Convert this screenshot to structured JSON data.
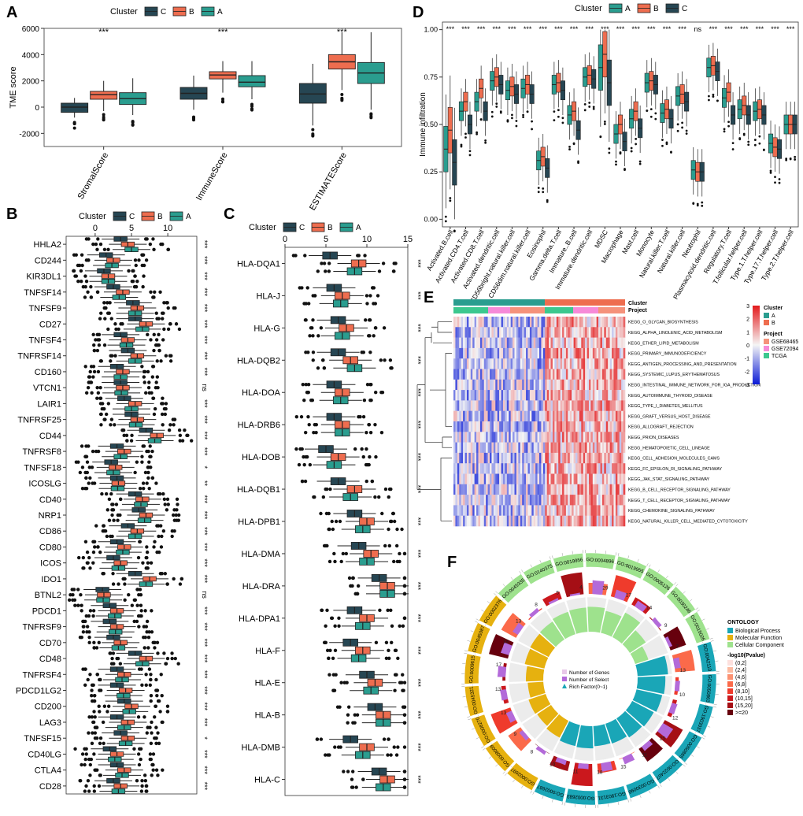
{
  "colors": {
    "A": "#2a9d8f",
    "B": "#ee6d4f",
    "C": "#264653",
    "axis": "#333333",
    "panelBg": "#ffffff",
    "heatHigh": "#e31a1c",
    "heatLow": "#0a1ad6",
    "heatMid": "#f5f5f5",
    "gse68465": "#f5927b",
    "gse72094": "#f68ad8",
    "tcga": "#3cc88f",
    "bp": "#1aa6b7",
    "mf": "#e6b10f",
    "cc": "#9ee28d"
  },
  "panels": {
    "A": "A",
    "B": "B",
    "C": "C",
    "D": "D",
    "E": "E",
    "F": "F"
  },
  "legend": {
    "title": "Cluster",
    "C": "C",
    "B": "B",
    "A": "A"
  },
  "chart_data": [
    {
      "id": "A",
      "type": "box",
      "ylabel": "TME score",
      "ylim": [
        -3000,
        6000
      ],
      "yticks": [
        -2000,
        0,
        2000,
        4000,
        6000
      ],
      "categories": [
        "StromalScore",
        "ImmuneScore",
        "ESTIMATEScore"
      ],
      "groups": [
        "C",
        "B",
        "A"
      ],
      "significance": [
        "***",
        "***",
        "***"
      ],
      "boxes": {
        "StromalScore": {
          "C": [
            -800,
            -400,
            0,
            300,
            700
          ],
          "B": [
            -300,
            600,
            950,
            1200,
            2000
          ],
          "A": [
            -600,
            200,
            650,
            1100,
            2200
          ]
        },
        "ImmuneScore": {
          "C": [
            -200,
            600,
            1050,
            1500,
            2400
          ],
          "B": [
            1100,
            2150,
            2450,
            2700,
            3500
          ],
          "A": [
            600,
            1550,
            1900,
            2400,
            3500
          ]
        },
        "ESTIMATEScore": {
          "C": [
            -1400,
            300,
            1000,
            1800,
            3300
          ],
          "B": [
            1300,
            2900,
            3450,
            4000,
            5700
          ],
          "A": [
            -200,
            1800,
            2600,
            3400,
            5700
          ]
        }
      }
    },
    {
      "id": "B",
      "type": "box-horizontal",
      "xlim": [
        -4,
        14
      ],
      "xticks": [
        0,
        5,
        10
      ],
      "groups": [
        "C",
        "B",
        "A"
      ],
      "genes": [
        "HHLA2",
        "CD244",
        "KIR3DL1",
        "TNFSF14",
        "TNFSF9",
        "CD27",
        "TNFSF4",
        "TNFRSF14",
        "CD160",
        "VTCN1",
        "LAIR1",
        "TNFRSF25",
        "CD44",
        "TNFRSF8",
        "TNFSF18",
        "ICOSLG",
        "CD40",
        "NRP1",
        "CD86",
        "CD80",
        "ICOS",
        "IDO1",
        "BTNL2",
        "PDCD1",
        "TNFRSF9",
        "CD70",
        "CD48",
        "TNFRSF4",
        "PDCD1LG2",
        "CD200",
        "LAG3",
        "TNFSF15",
        "CD40LG",
        "CTLA4",
        "CD28"
      ],
      "significance": [
        "***",
        "***",
        "***",
        "***",
        "***",
        "***",
        "***",
        "***",
        "***",
        "ns",
        "***",
        "***",
        "***",
        "***",
        "*",
        "**",
        "***",
        "***",
        "***",
        "***",
        "***",
        "***",
        "ns",
        "***",
        "***",
        "***",
        "***",
        "***",
        "***",
        "***",
        "***",
        "*",
        "***",
        "***",
        "***"
      ],
      "medians": [
        [
          3.5,
          4.5,
          5.0
        ],
        [
          1.5,
          2.5,
          2.3
        ],
        [
          1.2,
          1.8,
          1.8
        ],
        [
          2.5,
          3.8,
          3.3
        ],
        [
          5.2,
          5.8,
          5.5
        ],
        [
          5.5,
          7.0,
          6.5
        ],
        [
          3.5,
          4.5,
          4.3
        ],
        [
          4.5,
          5.8,
          5.5
        ],
        [
          3.0,
          3.8,
          3.5
        ],
        [
          3.5,
          3.8,
          3.6
        ],
        [
          4.0,
          5.5,
          5.0
        ],
        [
          5.0,
          5.8,
          5.6
        ],
        [
          7.0,
          8.5,
          8.2
        ],
        [
          3.0,
          4.0,
          3.5
        ],
        [
          2.2,
          2.8,
          2.5
        ],
        [
          3.0,
          3.2,
          3.1
        ],
        [
          5.5,
          6.5,
          6.3
        ],
        [
          6.0,
          7.0,
          6.8
        ],
        [
          4.5,
          5.8,
          5.5
        ],
        [
          3.0,
          4.0,
          3.8
        ],
        [
          2.5,
          3.5,
          3.2
        ],
        [
          5.5,
          7.5,
          7.0
        ],
        [
          1.0,
          1.2,
          1.1
        ],
        [
          2.0,
          3.0,
          2.7
        ],
        [
          2.0,
          3.0,
          2.8
        ],
        [
          2.5,
          3.5,
          3.2
        ],
        [
          5.5,
          7.0,
          6.5
        ],
        [
          3.0,
          4.0,
          3.7
        ],
        [
          3.0,
          4.2,
          3.9
        ],
        [
          4.0,
          5.0,
          4.7
        ],
        [
          3.0,
          4.5,
          4.0
        ],
        [
          3.5,
          4.5,
          4.2
        ],
        [
          2.0,
          3.0,
          2.7
        ],
        [
          3.0,
          4.0,
          3.7
        ],
        [
          2.5,
          3.5,
          3.2
        ]
      ]
    },
    {
      "id": "C",
      "type": "box-horizontal",
      "xlim": [
        0,
        15
      ],
      "xticks": [
        0,
        5,
        10,
        15
      ],
      "groups": [
        "C",
        "B",
        "A"
      ],
      "genes": [
        "HLA-DQA1",
        "HLA-J",
        "HLA-G",
        "HLA-DQB2",
        "HLA-DOA",
        "HLA-DRB6",
        "HLA-DOB",
        "HLA-DQB1",
        "HLA-DPB1",
        "HLA-DMA",
        "HLA-DRA",
        "HLA-DPA1",
        "HLA-F",
        "HLA-E",
        "HLA-B",
        "HLA-DMB",
        "HLA-C"
      ],
      "significance": [
        "***",
        "***",
        "***",
        "***",
        "***",
        "***",
        "***",
        "***",
        "***",
        "***",
        "***",
        "***",
        "***",
        "***",
        "***",
        "***",
        "***"
      ],
      "medians": [
        [
          5.5,
          9.0,
          8.5
        ],
        [
          6.0,
          7.0,
          6.8
        ],
        [
          6.5,
          7.5,
          7.0
        ],
        [
          6.5,
          8.0,
          8.5
        ],
        [
          6.0,
          7.0,
          6.8
        ],
        [
          6.0,
          7.0,
          7.0
        ],
        [
          5.0,
          6.5,
          6.0
        ],
        [
          6.5,
          8.5,
          8.0
        ],
        [
          8.5,
          10.0,
          9.5
        ],
        [
          9.0,
          10.5,
          10.0
        ],
        [
          11.5,
          12.5,
          12.5
        ],
        [
          8.5,
          10.0,
          9.5
        ],
        [
          8.0,
          9.5,
          9.0
        ],
        [
          10.0,
          11.0,
          10.5
        ],
        [
          11.0,
          12.0,
          12.0
        ],
        [
          8.0,
          10.0,
          9.5
        ],
        [
          11.5,
          12.5,
          12.0
        ]
      ]
    },
    {
      "id": "D",
      "type": "box",
      "ylabel": "Immune infiltration",
      "ylim": [
        0,
        1
      ],
      "yticks": [
        0.0,
        0.25,
        0.5,
        0.75,
        1.0
      ],
      "groups": [
        "A",
        "B",
        "C"
      ],
      "categories": [
        "Activated.B.cell",
        "Activated.CD4.T.cell",
        "Activated.CD8.T.cell",
        "Activated.dendritic.cell",
        "CD56bright.natural.killer.cell",
        "CD56dim.natural.killer.cell",
        "Eosinophil",
        "Gamma.delta.T.cell",
        "Immature..B.cell",
        "Immature.dendritic.cell",
        "MDSC",
        "Macrophage",
        "Mast.cell",
        "Monocyte",
        "Natural.killer.T.cell",
        "Natural.killer.cell",
        "Neutrophil",
        "Plasmacytoid.dendritic.cell",
        "Regulatory.T.cell",
        "T.follicular.helper.cell",
        "Type.1.T.helper.cell",
        "Type.17.T.helper.cell",
        "Type.2.T.helper.cell"
      ],
      "significance": [
        "***",
        "***",
        "***",
        "***",
        "***",
        "***",
        "***",
        "***",
        "***",
        "***",
        "***",
        "***",
        "***",
        "***",
        "***",
        "***",
        "ns",
        "***",
        "***",
        "***",
        "***",
        "***",
        "***"
      ],
      "medians": [
        [
          0.37,
          0.47,
          0.3
        ],
        [
          0.57,
          0.62,
          0.5
        ],
        [
          0.62,
          0.69,
          0.57
        ],
        [
          0.73,
          0.75,
          0.71
        ],
        [
          0.68,
          0.7,
          0.66
        ],
        [
          0.69,
          0.71,
          0.66
        ],
        [
          0.31,
          0.33,
          0.27
        ],
        [
          0.71,
          0.72,
          0.68
        ],
        [
          0.55,
          0.57,
          0.47
        ],
        [
          0.75,
          0.76,
          0.74
        ],
        [
          0.8,
          0.87,
          0.72
        ],
        [
          0.45,
          0.5,
          0.41
        ],
        [
          0.53,
          0.57,
          0.48
        ],
        [
          0.72,
          0.73,
          0.71
        ],
        [
          0.56,
          0.58,
          0.53
        ],
        [
          0.65,
          0.66,
          0.62
        ],
        [
          0.26,
          0.25,
          0.25
        ],
        [
          0.8,
          0.81,
          0.78
        ],
        [
          0.64,
          0.67,
          0.55
        ],
        [
          0.58,
          0.6,
          0.55
        ],
        [
          0.57,
          0.58,
          0.55
        ],
        [
          0.4,
          0.38,
          0.37
        ],
        [
          0.5,
          0.5,
          0.5
        ]
      ]
    },
    {
      "id": "E",
      "type": "heatmap",
      "legend": {
        "title": "",
        "scale": [
          3,
          2,
          1,
          0,
          -1,
          -2,
          -3
        ]
      },
      "clusterLegendTitle": "Cluster",
      "projectLegendTitle": "Project",
      "clusterLevels": [
        "A",
        "B"
      ],
      "projectLevels": [
        "GSE68465",
        "GSE72094",
        "TCGA"
      ],
      "annotationRows": [
        "Cluster",
        "Project"
      ],
      "rows": [
        "KEGG_O_GLYCAN_BIOSYNTHESIS",
        "KEGG_ALPHA_LINOLENIC_ACID_METABOLISM",
        "KEGG_ETHER_LIPID_METABOLISM",
        "KEGG_PRIMARY_IMMUNODEFICIENCY",
        "KEGG_ANTIGEN_PROCESSING_AND_PRESENTATION",
        "KEGG_SYSTEMIC_LUPUS_ERYTHEMATOSUS",
        "KEGG_INTESTINAL_IMMUNE_NETWORK_FOR_IGA_PRODUCTION",
        "KEGG_AUTOIMMUNE_THYROID_DISEASE",
        "KEGG_TYPE_I_DIABETES_MELLITUS",
        "KEGG_GRAFT_VERSUS_HOST_DISEASE",
        "KEGG_ALLOGRAFT_REJECTION",
        "KEGG_PRION_DISEASES",
        "KEGG_HEMATOPOIETIC_CELL_LINEAGE",
        "KEGG_CELL_ADHESION_MOLECULES_CAMS",
        "KEGG_FC_EPSILON_RI_SIGNALING_PATHWAY",
        "KEGG_JAK_STAT_SIGNALING_PATHWAY",
        "KEGG_B_CELL_RECEPTOR_SIGNALING_PATHWAY",
        "KEGG_T_CELL_RECEPTOR_SIGNALING_PATHWAY",
        "KEGG_CHEMOKINE_SIGNALING_PATHWAY",
        "KEGG_NATURAL_KILLER_CELL_MEDIATED_CYTOTOXICITY"
      ]
    },
    {
      "id": "F",
      "type": "circos",
      "legendTitle": "ONTOLOGY",
      "ontologies": [
        "Biological Process",
        "Molecular Function",
        "Cellular Component"
      ],
      "pvalueTitle": "-log10(Pvalue)",
      "pvalueBins": [
        "(0,2]",
        "(2,4]",
        "(4,6]",
        "(6,8]",
        "(8,10]",
        "(10,15]",
        "(15,20]",
        ">=20"
      ],
      "innerLegend": [
        "Number of Genes",
        "Number of Select",
        "Rich Factor(0~1)"
      ],
      "terms": [
        {
          "id": "GO:0004896",
          "ont": "cc",
          "select": 29,
          "rich": 0.72
        },
        {
          "id": "GO:0019955",
          "ont": "cc",
          "select": 17,
          "rich": 0.65
        },
        {
          "id": "GO:0005126",
          "ont": "cc",
          "select": 14,
          "rich": 0.8
        },
        {
          "id": "GO:0030246",
          "ont": "cc",
          "select": 9,
          "rich": 0.55
        },
        {
          "id": "GO:0015026",
          "ont": "cc",
          "select": 7,
          "rich": 0.4
        },
        {
          "id": "GO:0042110",
          "ont": "bp",
          "select": 13,
          "rich": 0.88
        },
        {
          "id": "GO:0050863",
          "ont": "bp",
          "select": 10,
          "rich": 0.8
        },
        {
          "id": "GO:1903037",
          "ont": "bp",
          "select": 12,
          "rich": 0.76
        },
        {
          "id": "GO:0050865",
          "ont": "bp",
          "select": 25,
          "rich": 0.7
        },
        {
          "id": "GO:0022407",
          "ont": "bp",
          "select": 11,
          "rich": 0.66
        },
        {
          "id": "GO:0030098",
          "ont": "bp",
          "select": 15,
          "rich": 0.6
        },
        {
          "id": "GO:1903131",
          "ont": "bp",
          "select": 18,
          "rich": 0.58
        },
        {
          "id": "GO:0002683",
          "ont": "bp",
          "select": 11,
          "rich": 0.64
        },
        {
          "id": "GO:0002687",
          "ont": "bp",
          "select": 10,
          "rich": 0.62
        },
        {
          "id": "GO:0002697",
          "ont": "mf",
          "select": 8,
          "rich": 0.55
        },
        {
          "id": "GO:0008009",
          "ont": "mf",
          "select": 9,
          "rich": 0.48
        },
        {
          "id": "GO:0008270",
          "ont": "mf",
          "select": 13,
          "rich": 0.52
        },
        {
          "id": "GO:0045321",
          "ont": "mf",
          "select": 13,
          "rich": 0.45
        },
        {
          "id": "GO:0009615",
          "ont": "mf",
          "select": 17,
          "rich": 0.5
        },
        {
          "id": "GO:0045087",
          "ont": "mf",
          "select": 18,
          "rich": 0.58
        },
        {
          "id": "GO:0002376",
          "ont": "mf",
          "select": 13,
          "rich": 0.6
        },
        {
          "id": "GO:0045335",
          "ont": "cc",
          "select": 8,
          "rich": 0.62
        },
        {
          "id": "GO:0140375",
          "ont": "cc",
          "select": 5,
          "rich": 0.68
        },
        {
          "id": "GO:0019956",
          "ont": "cc",
          "select": 4,
          "rich": 0.7
        }
      ]
    }
  ]
}
